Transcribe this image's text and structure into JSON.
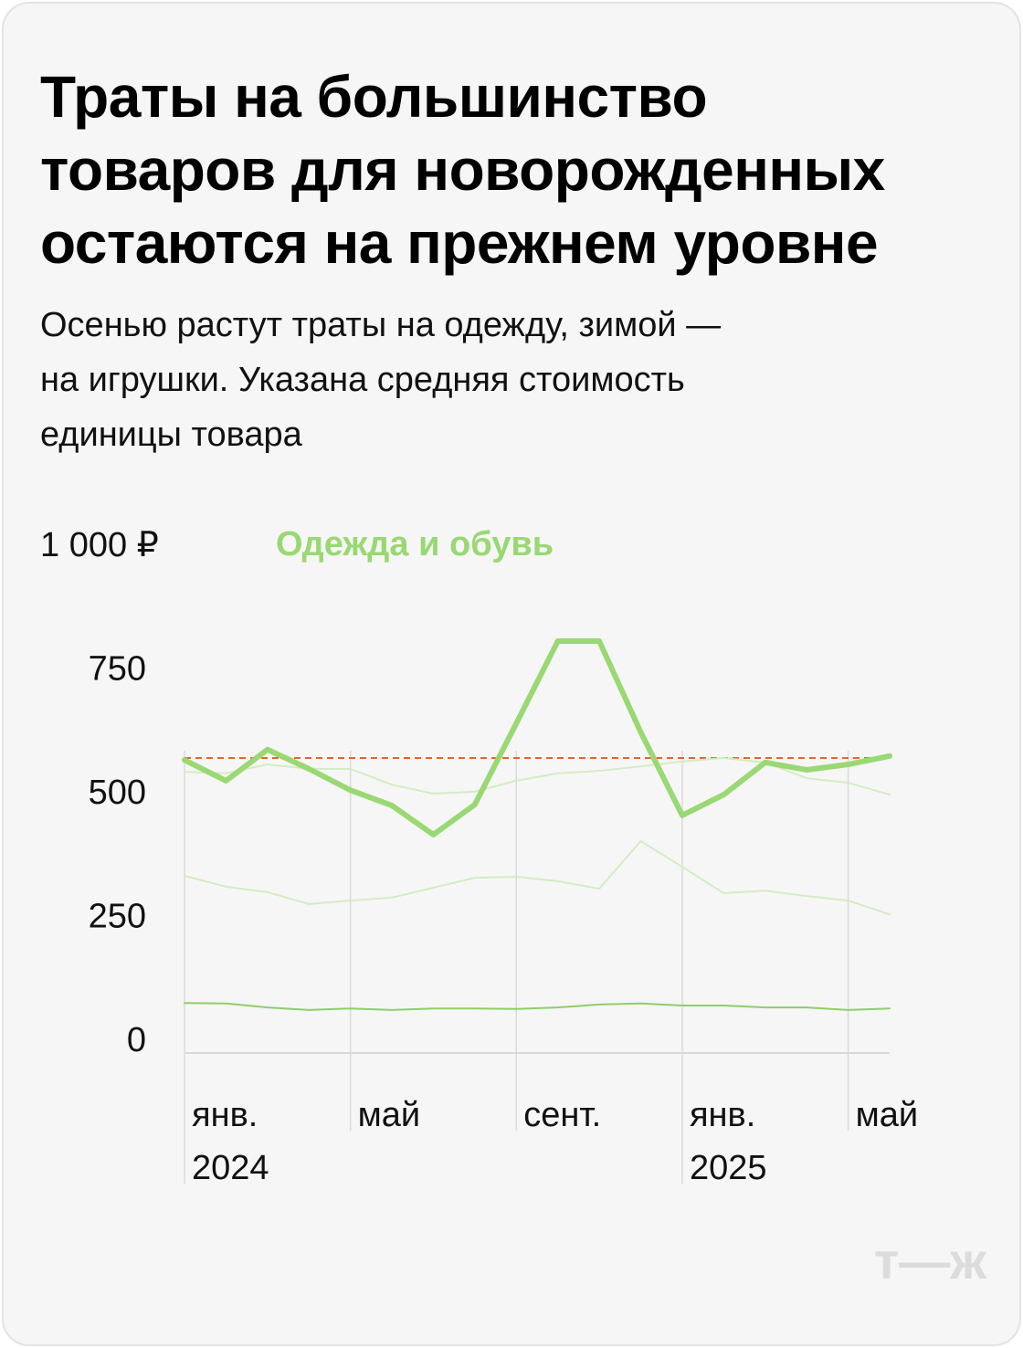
{
  "chart_data": {
    "type": "line",
    "title": "Траты на большинство\nтоваров для новорожденных\nостаются на прежнем уровне",
    "subtitle": "Осенью растут траты на одежду, зимой —\nна игрушки. Указана средняя стоимость\nединицы товара",
    "categories": [
      "янв.\n2024",
      null,
      null,
      null,
      "май",
      null,
      null,
      null,
      "сент.",
      null,
      null,
      null,
      "янв.\n2025",
      null,
      null,
      null,
      "май",
      null
    ],
    "ylim": [
      0,
      1000
    ],
    "yticks": [
      0,
      250,
      500,
      750,
      {
        "value": 1000,
        "label": "1 000 ₽"
      }
    ],
    "reference_line": {
      "value": 596,
      "color": "#e8622c"
    },
    "series": [
      {
        "color": "#d3ecc2",
        "values": [
          568,
          565,
          583,
          574,
          574,
          542,
          524,
          528,
          550,
          565,
          570,
          579,
          589,
          596,
          587,
          555,
          546,
          522
        ]
      },
      {
        "color": "#d3ecc2",
        "values": [
          358,
          336,
          325,
          301,
          308,
          314,
          334,
          354,
          356,
          347,
          332,
          428,
          376,
          323,
          328,
          317,
          308,
          280
        ]
      },
      {
        "color": "#8fce6a",
        "values": [
          101,
          100,
          92,
          87,
          90,
          87,
          90,
          90,
          89,
          92,
          98,
          100,
          96,
          96,
          92,
          92,
          87,
          90
        ]
      },
      {
        "name": "Одежда и обувь",
        "color": "#9ad873",
        "values": [
          592,
          550,
          613,
          574,
          531,
          500,
          441,
          502,
          666,
          832,
          832,
          648,
          480,
          522,
          587,
          572,
          583,
          600
        ]
      }
    ],
    "logo": "т—ж"
  }
}
